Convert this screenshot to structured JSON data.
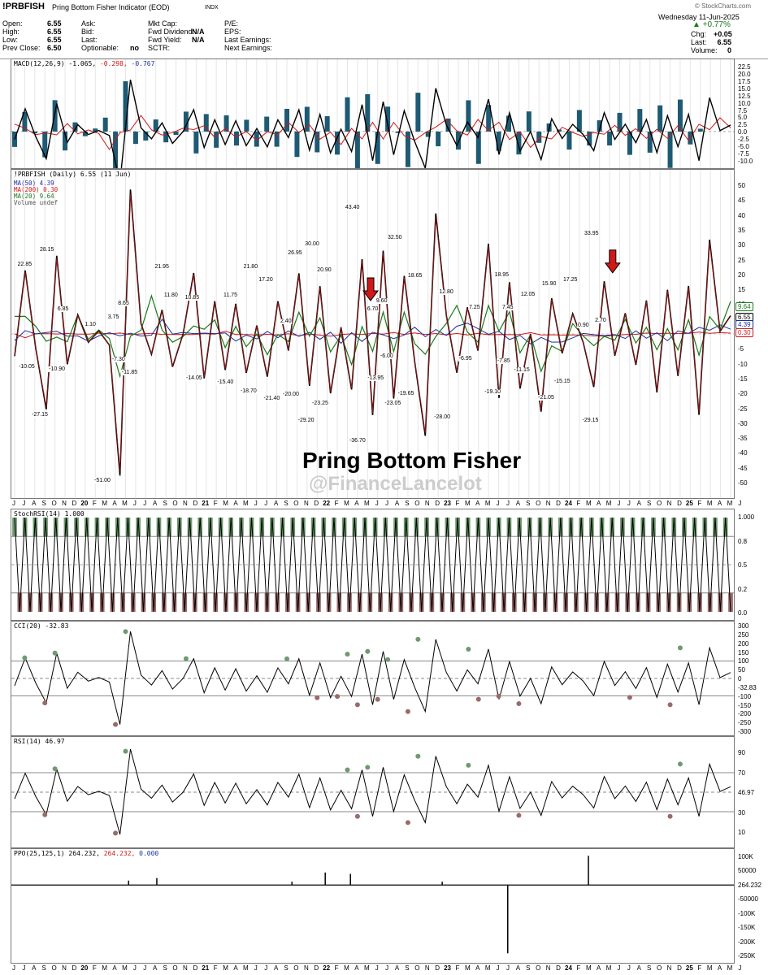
{
  "header": {
    "symbol": "!PRBFISH",
    "name": "Pring Bottom Fisher Indicator (EOD)",
    "exchange": "INDX",
    "brand": "© StockCharts.com",
    "date": "Wednesday 11-Jun-2025",
    "change_pct": "+0.77%",
    "quote": [
      {
        "label": "Open:",
        "value": "6.55"
      },
      {
        "label": "High:",
        "value": "6.55"
      },
      {
        "label": "Low:",
        "value": "6.55"
      },
      {
        "label": "Prev Close:",
        "value": "6.50"
      }
    ],
    "quote2": [
      {
        "label": "Ask:",
        "value": ""
      },
      {
        "label": "Bid:",
        "value": ""
      },
      {
        "label": "Last:",
        "value": ""
      },
      {
        "label": "Optionable:",
        "value": "no"
      }
    ],
    "quote3": [
      {
        "label": "Mkt Cap:",
        "value": ""
      },
      {
        "label": "Fwd Dividend:",
        "value": "N/A"
      },
      {
        "label": "Fwd Yield:",
        "value": "N/A"
      },
      {
        "label": "SCTR:",
        "value": ""
      }
    ],
    "quote4": [
      {
        "label": "P/E:",
        "value": ""
      },
      {
        "label": "EPS:",
        "value": ""
      },
      {
        "label": "Last Earnings:",
        "value": ""
      },
      {
        "label": "Next Earnings:",
        "value": ""
      }
    ],
    "quote5": [
      {
        "label": "Chg:",
        "value": "+0.05"
      },
      {
        "label": "Last:",
        "value": "6.55"
      },
      {
        "label": "Volume:",
        "value": "0"
      }
    ]
  },
  "panels": {
    "macd": {
      "title": "MACD(12,26,9) -1.065,",
      "v2": "-0.298,",
      "v3": "-0.767",
      "last": "-1.065",
      "ticks": [
        "22.5",
        "20.0",
        "17.5",
        "15.0",
        "12.5",
        "10.0",
        "7.5",
        "5.0",
        "2.5",
        "0.0",
        "-2.5",
        "-5.0",
        "-7.5",
        "-10.0"
      ]
    },
    "price": {
      "title": "!PRBFISH (Daily) 6.55 (11 Jun)",
      "ma50": "MA(50) 4.39",
      "ma200": "MA(200) 0.30",
      "ma20": "MA(20) 9.64",
      "vol": "Volume undef",
      "ticks": [
        "50",
        "45",
        "40",
        "35",
        "30",
        "25",
        "20",
        "15",
        "10",
        "5",
        "0",
        "-5",
        "-10",
        "-15",
        "-20",
        "-25",
        "-30",
        "-35",
        "-40",
        "-45",
        "-50"
      ],
      "tags": [
        "9.64",
        "6.55",
        "4.39",
        "0.30"
      ]
    },
    "stochrsi": {
      "title": "StochRSI(14) 1.000",
      "ticks": [
        "1.000",
        "0.8",
        "0.5",
        "0.2",
        "0.0"
      ]
    },
    "cci": {
      "title": "CCI(20) -32.83",
      "ticks": [
        "300",
        "250",
        "200",
        "150",
        "100",
        "50",
        "0",
        "-32.83",
        "-100",
        "-150",
        "-200",
        "-250",
        "-300"
      ]
    },
    "rsi": {
      "title": "RSI(14) 46.97",
      "ticks": [
        "90",
        "70",
        "46.97",
        "30",
        "10"
      ]
    },
    "ppo": {
      "title": "PPO(25,125,1) 264.232,",
      "v2": "264.232,",
      "v3": "0.000",
      "ticks": [
        "100K",
        "50000",
        "264.232",
        "-50000",
        "-100K",
        "-150K",
        "-200K",
        "-250K"
      ]
    }
  },
  "annotations": {
    "title": "Pring Bottom Fisher",
    "watermark": "@FinanceLancelot"
  },
  "x_axis_labels": [
    "J",
    "J",
    "A",
    "S",
    "O",
    "N",
    "D",
    "20",
    "F",
    "M",
    "A",
    "M",
    "J",
    "J",
    "A",
    "S",
    "O",
    "N",
    "D",
    "21",
    "F",
    "M",
    "A",
    "M",
    "J",
    "J",
    "A",
    "S",
    "O",
    "N",
    "D",
    "22",
    "F",
    "M",
    "A",
    "M",
    "J",
    "J",
    "A",
    "S",
    "O",
    "N",
    "D",
    "23",
    "F",
    "M",
    "A",
    "M",
    "J",
    "J",
    "A",
    "S",
    "O",
    "N",
    "D",
    "24",
    "F",
    "M",
    "A",
    "M",
    "J",
    "J",
    "A",
    "S",
    "O",
    "N",
    "D",
    "25",
    "F",
    "M",
    "A",
    "M",
    "J"
  ],
  "chart_data": {
    "type": "line",
    "title": "Pring Bottom Fisher Indicator (EOD)",
    "xlabel": "",
    "ylabel": "",
    "ylim": [
      -55,
      55
    ],
    "price_labels": [
      {
        "i": 1,
        "v": 22.85,
        "label": "22.85"
      },
      {
        "i": 1.2,
        "v": -10.05,
        "label": "-10.05"
      },
      {
        "i": 2.5,
        "v": -27.15,
        "label": "-27.15"
      },
      {
        "i": 3.2,
        "v": 28.15,
        "label": "28.15"
      },
      {
        "i": 4.2,
        "v": -10.9,
        "label": "-10.90"
      },
      {
        "i": 4.8,
        "v": 6.85,
        "label": "6.85"
      },
      {
        "i": 7.5,
        "v": 1.1,
        "label": "1.10"
      },
      {
        "i": 8.7,
        "v": -51.0,
        "label": "-51.00"
      },
      {
        "i": 9.8,
        "v": 3.75,
        "label": "3.75"
      },
      {
        "i": 10.3,
        "v": -7.3,
        "label": "-7.30"
      },
      {
        "i": 10.8,
        "v": 8.65,
        "label": "8.65"
      },
      {
        "i": 11.4,
        "v": -11.85,
        "label": "-11.85"
      },
      {
        "i": 14.6,
        "v": 21.95,
        "label": "21.95"
      },
      {
        "i": 15.5,
        "v": 11.8,
        "label": "11.80"
      },
      {
        "i": 17.6,
        "v": 10.85,
        "label": "10.85"
      },
      {
        "i": 17.8,
        "v": -14.05,
        "label": "-14.05"
      },
      {
        "i": 20.9,
        "v": -15.4,
        "label": "-15.40"
      },
      {
        "i": 21.4,
        "v": 11.75,
        "label": "11.75"
      },
      {
        "i": 23.4,
        "v": 21.8,
        "label": "21.80"
      },
      {
        "i": 23.2,
        "v": -18.7,
        "label": "-18.70"
      },
      {
        "i": 24.9,
        "v": 17.2,
        "label": "17.20"
      },
      {
        "i": 25.5,
        "v": -21.4,
        "label": "-21.40"
      },
      {
        "i": 26.9,
        "v": 2.4,
        "label": "2.40"
      },
      {
        "i": 27.4,
        "v": -20.0,
        "label": "-20.00"
      },
      {
        "i": 27.8,
        "v": 26.95,
        "label": "26.95"
      },
      {
        "i": 28.9,
        "v": -29.2,
        "label": "-29.20"
      },
      {
        "i": 29.5,
        "v": 30.0,
        "label": "30.00"
      },
      {
        "i": 30.3,
        "v": -23.25,
        "label": "-23.25"
      },
      {
        "i": 30.7,
        "v": 20.9,
        "label": "20.90"
      },
      {
        "i": 33.5,
        "v": 43.4,
        "label": "43.40"
      },
      {
        "i": 34.0,
        "v": -36.7,
        "label": "-36.70"
      },
      {
        "i": 35.5,
        "v": 6.7,
        "label": "6.70"
      },
      {
        "i": 35.8,
        "v": -13.95,
        "label": "-13.95"
      },
      {
        "i": 36.4,
        "v": 9.6,
        "label": "9.60"
      },
      {
        "i": 36.9,
        "v": -6.0,
        "label": "-6.00"
      },
      {
        "i": 37.7,
        "v": 32.5,
        "label": "32.50"
      },
      {
        "i": 37.5,
        "v": -23.05,
        "label": "-23.05"
      },
      {
        "i": 38.8,
        "v": -19.65,
        "label": "-19.65"
      },
      {
        "i": 39.7,
        "v": 18.65,
        "label": "18.65"
      },
      {
        "i": 42.4,
        "v": -28.0,
        "label": "-28.00"
      },
      {
        "i": 42.8,
        "v": 12.8,
        "label": "12.80"
      },
      {
        "i": 44.7,
        "v": -6.95,
        "label": "-6.95"
      },
      {
        "i": 45.6,
        "v": 7.25,
        "label": "7.25"
      },
      {
        "i": 47.4,
        "v": -19.1,
        "label": "-19.10"
      },
      {
        "i": 48.9,
        "v": 7.45,
        "label": "7.45"
      },
      {
        "i": 48.5,
        "v": -7.85,
        "label": "-7.85"
      },
      {
        "i": 48.3,
        "v": 18.95,
        "label": "18.95"
      },
      {
        "i": 50.3,
        "v": -11.15,
        "label": "-11.15"
      },
      {
        "i": 50.9,
        "v": 12.05,
        "label": "12.05"
      },
      {
        "i": 52.7,
        "v": -21.05,
        "label": "-21.05"
      },
      {
        "i": 53.0,
        "v": 15.9,
        "label": "15.90"
      },
      {
        "i": 54.3,
        "v": -15.15,
        "label": "-15.15"
      },
      {
        "i": 55.1,
        "v": 17.25,
        "label": "17.25"
      },
      {
        "i": 56.4,
        "v": 0.9,
        "label": "0.90"
      },
      {
        "i": 57.1,
        "v": -29.15,
        "label": "-29.15"
      },
      {
        "i": 57.2,
        "v": 33.95,
        "label": "33.95"
      },
      {
        "i": 58.1,
        "v": 2.7,
        "label": "2.70"
      }
    ],
    "series": [
      {
        "name": "!PRBFISH",
        "color": "#000000",
        "values": [
          -8,
          22.85,
          -5,
          -27.15,
          28.15,
          -10.9,
          6.85,
          -3,
          1.1,
          -4,
          -51,
          52,
          3.75,
          -7.3,
          8.65,
          -11.85,
          0,
          21.95,
          -16,
          11.8,
          -13,
          10.85,
          -14.05,
          3,
          -15.4,
          11.75,
          -6,
          21.8,
          -18.7,
          17.2,
          -21.4,
          2.4,
          -20,
          26.95,
          -29.2,
          30,
          -23.25,
          20.9,
          -10,
          -36.7,
          43.4,
          6.7,
          -13.95,
          9.6,
          -6,
          32.5,
          -23.05,
          18.65,
          -19.65,
          0,
          -28,
          12.8,
          -6.95,
          7.25,
          -3,
          -19.1,
          18.95,
          -7.85,
          7.45,
          -11.15,
          12.05,
          -21.05,
          15.9,
          -15.15,
          17.25,
          -29.15,
          33.95,
          0.9,
          6.55
        ]
      },
      {
        "name": "MA(20)",
        "color": "#1a7a1a"
      },
      {
        "name": "MA(50)",
        "color": "#1a2fa0"
      },
      {
        "name": "MA(200)",
        "color": "#d01818"
      }
    ],
    "arrows": [
      {
        "i": 35.3,
        "v": 12
      },
      {
        "i": 59.3,
        "v": 22
      }
    ]
  }
}
